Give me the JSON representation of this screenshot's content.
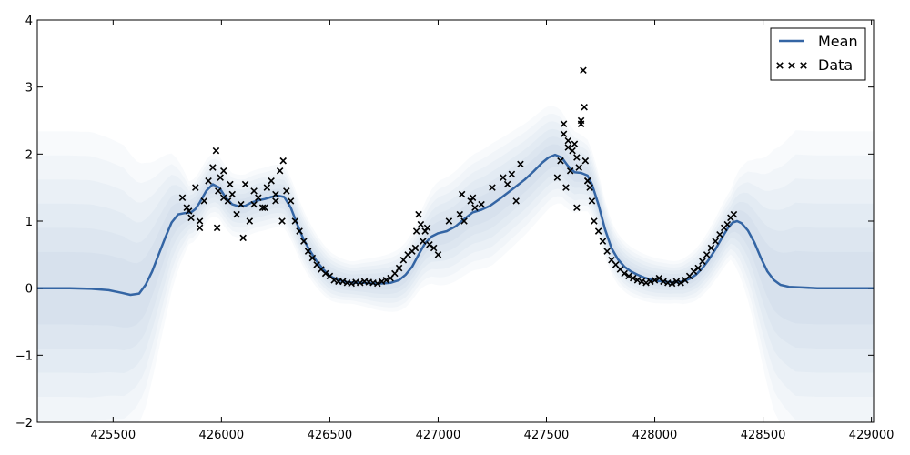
{
  "chart_data": {
    "type": "line",
    "title": "",
    "xlabel": "",
    "ylabel": "",
    "xlim": [
      425150,
      429010
    ],
    "ylim": [
      -2,
      4
    ],
    "x_ticks": [
      425500,
      426000,
      426500,
      427000,
      427500,
      428000,
      428500,
      429000
    ],
    "y_ticks": [
      -2,
      -1,
      0,
      1,
      2,
      3,
      4
    ],
    "grid": false,
    "legend": {
      "position": "top-right",
      "entries": [
        {
          "label": "Mean",
          "marker": "line",
          "color": "#3465a4"
        },
        {
          "label": "Data",
          "marker": "x",
          "color": "#000000"
        }
      ]
    },
    "series": [
      {
        "name": "Mean",
        "kind": "line",
        "color": "#3465a4",
        "x": [
          425150,
          425300,
          425400,
          425480,
          425540,
          425580,
          425620,
          425650,
          425680,
          425710,
          425740,
          425770,
          425800,
          425830,
          425860,
          425880,
          425900,
          425930,
          425960,
          425990,
          426020,
          426050,
          426080,
          426110,
          426140,
          426170,
          426200,
          426230,
          426260,
          426290,
          426320,
          426350,
          426380,
          426410,
          426440,
          426470,
          426500,
          426540,
          426580,
          426620,
          426660,
          426700,
          426740,
          426780,
          426820,
          426850,
          426880,
          426910,
          426940,
          426970,
          427000,
          427040,
          427080,
          427120,
          427160,
          427200,
          427240,
          427280,
          427320,
          427360,
          427400,
          427440,
          427480,
          427510,
          427540,
          427570,
          427600,
          427630,
          427660,
          427690,
          427710,
          427740,
          427770,
          427800,
          427830,
          427860,
          427890,
          427920,
          427950,
          427980,
          428010,
          428040,
          428070,
          428100,
          428130,
          428160,
          428190,
          428220,
          428250,
          428280,
          428310,
          428340,
          428360,
          428380,
          428400,
          428430,
          428460,
          428490,
          428520,
          428550,
          428580,
          428620,
          428680,
          428750,
          428850,
          429010
        ],
        "y": [
          0.0,
          0.0,
          -0.01,
          -0.03,
          -0.07,
          -0.1,
          -0.08,
          0.05,
          0.25,
          0.5,
          0.75,
          0.98,
          1.1,
          1.12,
          1.13,
          1.18,
          1.28,
          1.45,
          1.55,
          1.5,
          1.35,
          1.25,
          1.22,
          1.23,
          1.28,
          1.31,
          1.33,
          1.36,
          1.38,
          1.36,
          1.2,
          0.95,
          0.72,
          0.55,
          0.4,
          0.28,
          0.18,
          0.12,
          0.09,
          0.08,
          0.08,
          0.07,
          0.07,
          0.08,
          0.12,
          0.2,
          0.32,
          0.5,
          0.67,
          0.77,
          0.82,
          0.85,
          0.92,
          1.03,
          1.13,
          1.17,
          1.23,
          1.32,
          1.42,
          1.52,
          1.62,
          1.74,
          1.87,
          1.95,
          1.99,
          1.95,
          1.82,
          1.73,
          1.72,
          1.68,
          1.55,
          1.25,
          0.88,
          0.6,
          0.43,
          0.32,
          0.25,
          0.2,
          0.16,
          0.13,
          0.11,
          0.1,
          0.09,
          0.09,
          0.1,
          0.14,
          0.2,
          0.3,
          0.43,
          0.58,
          0.75,
          0.91,
          0.98,
          1.0,
          0.97,
          0.86,
          0.68,
          0.45,
          0.25,
          0.12,
          0.05,
          0.02,
          0.01,
          0.0,
          0.0,
          0.0
        ]
      },
      {
        "name": "Data",
        "kind": "scatter",
        "marker": "x",
        "color": "#000000",
        "x": [
          425820,
          425840,
          425860,
          425880,
          425900,
          425920,
          425940,
          425960,
          425975,
          425985,
          425995,
          426010,
          426030,
          426050,
          426070,
          426090,
          426110,
          426130,
          426150,
          426170,
          426190,
          426210,
          426230,
          426250,
          426270,
          426285,
          426300,
          426320,
          426340,
          426360,
          426380,
          426400,
          426420,
          426440,
          426460,
          426480,
          426500,
          426520,
          426540,
          426560,
          426580,
          426600,
          426620,
          426640,
          426660,
          426680,
          426700,
          426720,
          426740,
          426760,
          426780,
          426800,
          426820,
          426840,
          426860,
          426880,
          426895,
          426900,
          426910,
          426920,
          426930,
          426940,
          426950,
          426960,
          426980,
          427000,
          427050,
          427100,
          427110,
          427120,
          427150,
          427170,
          427200,
          427250,
          427300,
          427320,
          427340,
          427360,
          427380,
          427550,
          427565,
          427580,
          427590,
          427600,
          427610,
          427620,
          427630,
          427640,
          427650,
          427660,
          427670,
          427675,
          427680,
          427690,
          427700,
          427710,
          427720,
          427740,
          427760,
          427780,
          427800,
          427820,
          427840,
          427860,
          427880,
          427900,
          427920,
          427940,
          427960,
          427980,
          428000,
          428020,
          428040,
          428060,
          428080,
          428100,
          428120,
          428140,
          428160,
          428180,
          428200,
          428220,
          428240,
          428260,
          428280,
          428300,
          428320,
          428335,
          428350,
          428365,
          427690,
          427600,
          425980,
          426100,
          426200,
          425900,
          426010,
          426250,
          426280,
          427160,
          427580,
          427640,
          427660,
          425850,
          426040,
          426150
        ],
        "y": [
          1.35,
          1.2,
          1.05,
          1.5,
          1.0,
          1.3,
          1.6,
          1.8,
          2.05,
          1.45,
          1.65,
          1.75,
          1.3,
          1.4,
          1.1,
          1.25,
          1.55,
          1.0,
          1.45,
          1.35,
          1.2,
          1.5,
          1.6,
          1.3,
          1.75,
          1.9,
          1.45,
          1.3,
          1.0,
          0.85,
          0.7,
          0.55,
          0.45,
          0.35,
          0.28,
          0.22,
          0.18,
          0.12,
          0.1,
          0.1,
          0.08,
          0.07,
          0.09,
          0.08,
          0.1,
          0.09,
          0.08,
          0.07,
          0.1,
          0.12,
          0.15,
          0.22,
          0.3,
          0.42,
          0.5,
          0.55,
          0.6,
          0.85,
          1.1,
          0.95,
          0.7,
          0.85,
          0.9,
          0.65,
          0.6,
          0.5,
          1.0,
          1.1,
          1.4,
          1.0,
          1.3,
          1.2,
          1.25,
          1.5,
          1.65,
          1.55,
          1.7,
          1.3,
          1.85,
          1.65,
          1.9,
          2.45,
          1.5,
          2.2,
          1.75,
          2.05,
          2.15,
          1.95,
          1.8,
          2.5,
          3.25,
          2.7,
          1.9,
          1.6,
          1.5,
          1.3,
          1.0,
          0.85,
          0.7,
          0.55,
          0.42,
          0.35,
          0.28,
          0.22,
          0.18,
          0.15,
          0.12,
          0.1,
          0.08,
          0.1,
          0.12,
          0.15,
          0.1,
          0.08,
          0.07,
          0.1,
          0.08,
          0.12,
          0.18,
          0.25,
          0.3,
          0.4,
          0.5,
          0.6,
          0.7,
          0.8,
          0.9,
          0.95,
          1.05,
          1.1,
          1.6,
          2.1,
          0.9,
          0.75,
          1.2,
          0.9,
          1.35,
          1.4,
          1.0,
          1.35,
          2.3,
          1.2,
          2.45,
          1.15,
          1.55,
          1.25
        ]
      }
    ],
    "uncertainty_band": {
      "color": "#3465a4",
      "x": [
        425150,
        425400,
        425550,
        425650,
        425750,
        425850,
        426300,
        426600,
        426900,
        427000,
        427250,
        427500,
        427800,
        428100,
        428350,
        428450,
        428550,
        428650,
        428800,
        429010
      ],
      "sd": [
        0.9,
        0.9,
        0.85,
        0.7,
        0.45,
        0.18,
        0.18,
        0.12,
        0.2,
        0.3,
        0.35,
        0.3,
        0.15,
        0.12,
        0.2,
        0.45,
        0.75,
        0.9,
        0.9,
        0.9
      ]
    }
  }
}
